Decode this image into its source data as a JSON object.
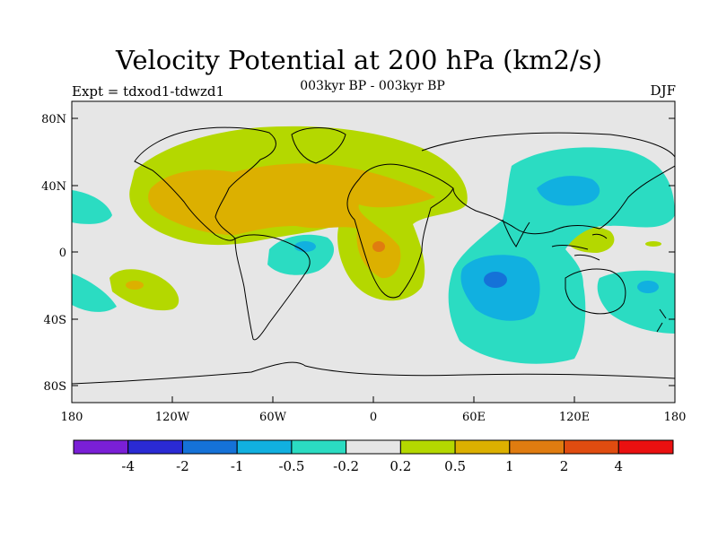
{
  "title": "Velocity Potential at 200 hPa (km2/s)",
  "subtitle": "003kyr BP - 003kyr BP",
  "left_label": "Expt = tdxod1-tdwzd1",
  "right_label": "DJF",
  "lat_ticks": [
    "80N",
    "40N",
    "0",
    "40S",
    "80S"
  ],
  "lon_ticks": [
    "180",
    "120W",
    "60W",
    "0",
    "60E",
    "120E",
    "180"
  ],
  "colorbar": {
    "colors": [
      "#7a1fd6",
      "#2a2ad4",
      "#1572d8",
      "#11b0e0",
      "#2bdcc2",
      "#e6e6e6",
      "#b4d800",
      "#dcb000",
      "#e07c10",
      "#e04c10",
      "#ea1010"
    ],
    "labels": [
      "-4",
      "-2",
      "-1",
      "-0.5",
      "-0.2",
      "0.2",
      "0.5",
      "1",
      "2",
      "4"
    ]
  }
}
